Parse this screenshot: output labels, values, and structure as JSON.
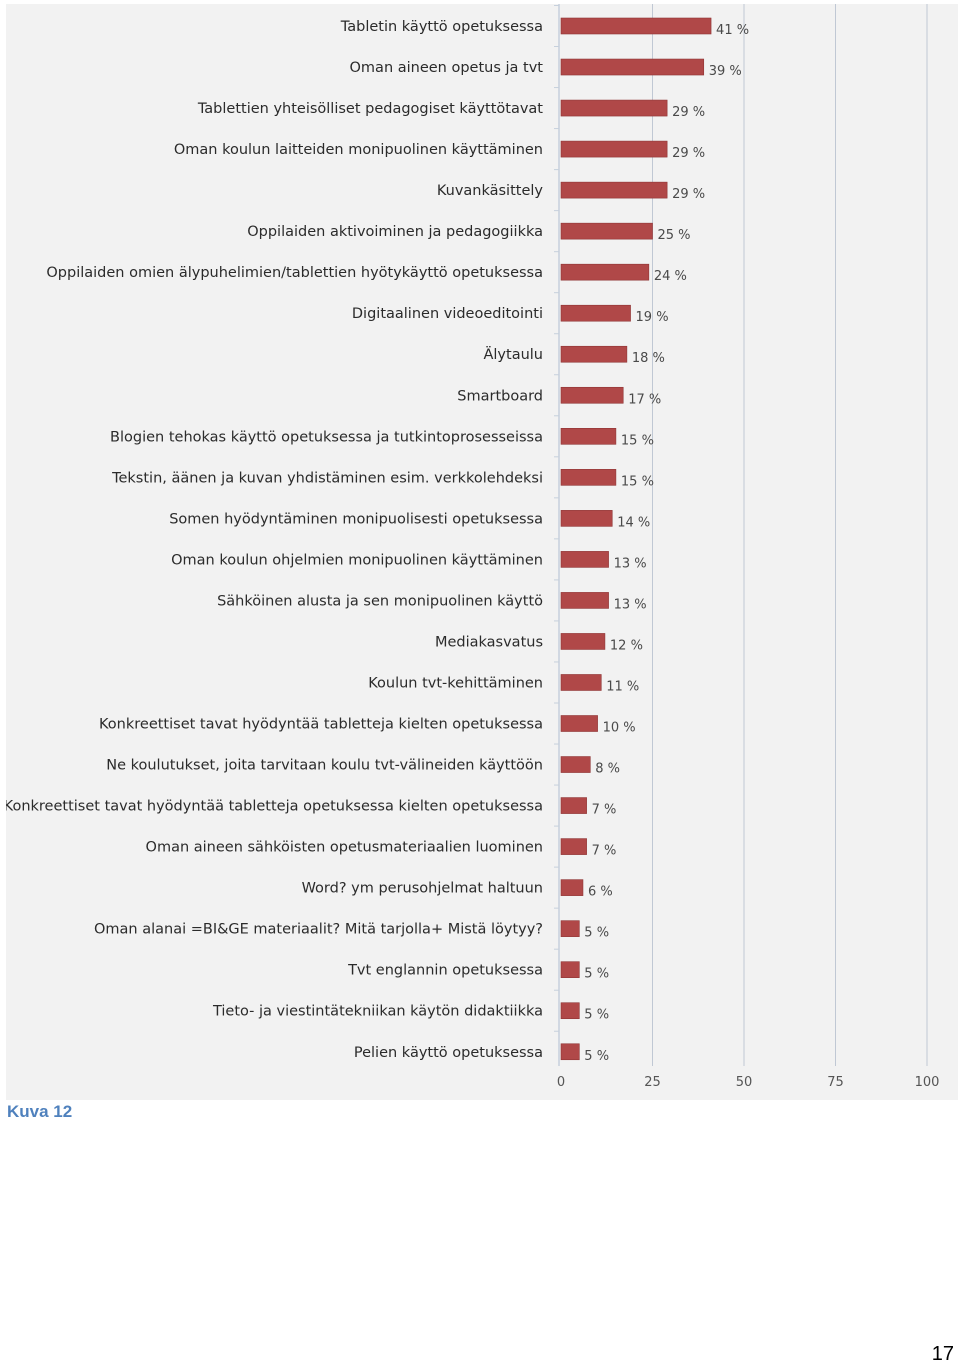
{
  "caption": "Kuva 12",
  "page_number": "17",
  "colors": {
    "bar": "#b04848",
    "bar_edge": "#8f3535",
    "grid": "#c0c8d4",
    "axis": "#c6d0dc",
    "panel_bg": "#f2f2f2"
  },
  "chart_data": {
    "type": "bar",
    "orientation": "horizontal",
    "title": "",
    "xlabel": "",
    "ylabel": "",
    "xlim": [
      0,
      100
    ],
    "ticks": [
      "0",
      "25",
      "50",
      "75",
      "100"
    ],
    "grid": true,
    "legend": "none",
    "categories": [
      "Tabletin käyttö opetuksessa",
      "Oman aineen opetus ja tvt",
      "Tablettien yhteisölliset pedagogiset käyttötavat",
      "Oman koulun laitteiden monipuolinen käyttäminen",
      "Kuvankäsittely",
      "Oppilaiden aktivoiminen ja pedagogiikka",
      "Oppilaiden omien älypuhelimien/tablettien hyötykäyttö opetuksessa",
      "Digitaalinen videoeditointi",
      "Älytaulu",
      "Smartboard",
      "Blogien tehokas käyttö opetuksessa ja tutkintoprosesseissa",
      "Tekstin, äänen ja kuvan yhdistäminen esim. verkkolehdeksi",
      "Somen hyödyntäminen monipuolisesti opetuksessa",
      "Oman koulun ohjelmien monipuolinen käyttäminen",
      "Sähköinen alusta ja sen monipuolinen käyttö",
      "Mediakasvatus",
      "Koulun tvt-kehittäminen",
      "Konkreettiset tavat hyödyntää tabletteja kielten opetuksessa",
      "Ne koulutukset, joita tarvitaan koulu tvt-välineiden käyttöön",
      "Konkreettiset tavat hyödyntää tabletteja opetuksessa kielten opetuksessa",
      "Oman aineen sähköisten opetusmateriaalien luominen",
      "Word? ym perusohjelmat haltuun",
      "Oman alanai =BI&GE materiaalit? Mitä tarjolla+ Mistä löytyy?",
      "Tvt englannin opetuksessa",
      "Tieto- ja viestintätekniikan käytön didaktiikka",
      "Pelien käyttö opetuksessa"
    ],
    "values": [
      41,
      39,
      29,
      29,
      29,
      25,
      24,
      19,
      18,
      17,
      15,
      15,
      14,
      13,
      13,
      12,
      11,
      10,
      8,
      7,
      7,
      6,
      5,
      5,
      5,
      5
    ],
    "value_labels": [
      "41 %",
      "39 %",
      "29 %",
      "29 %",
      "29 %",
      "25 %",
      "24 %",
      "19 %",
      "18 %",
      "17 %",
      "15 %",
      "15 %",
      "14 %",
      "13 %",
      "13 %",
      "12 %",
      "11 %",
      "10 %",
      "8 %",
      "7 %",
      "7 %",
      "6 %",
      "5 %",
      "5 %",
      "5 %",
      "5 %"
    ]
  }
}
